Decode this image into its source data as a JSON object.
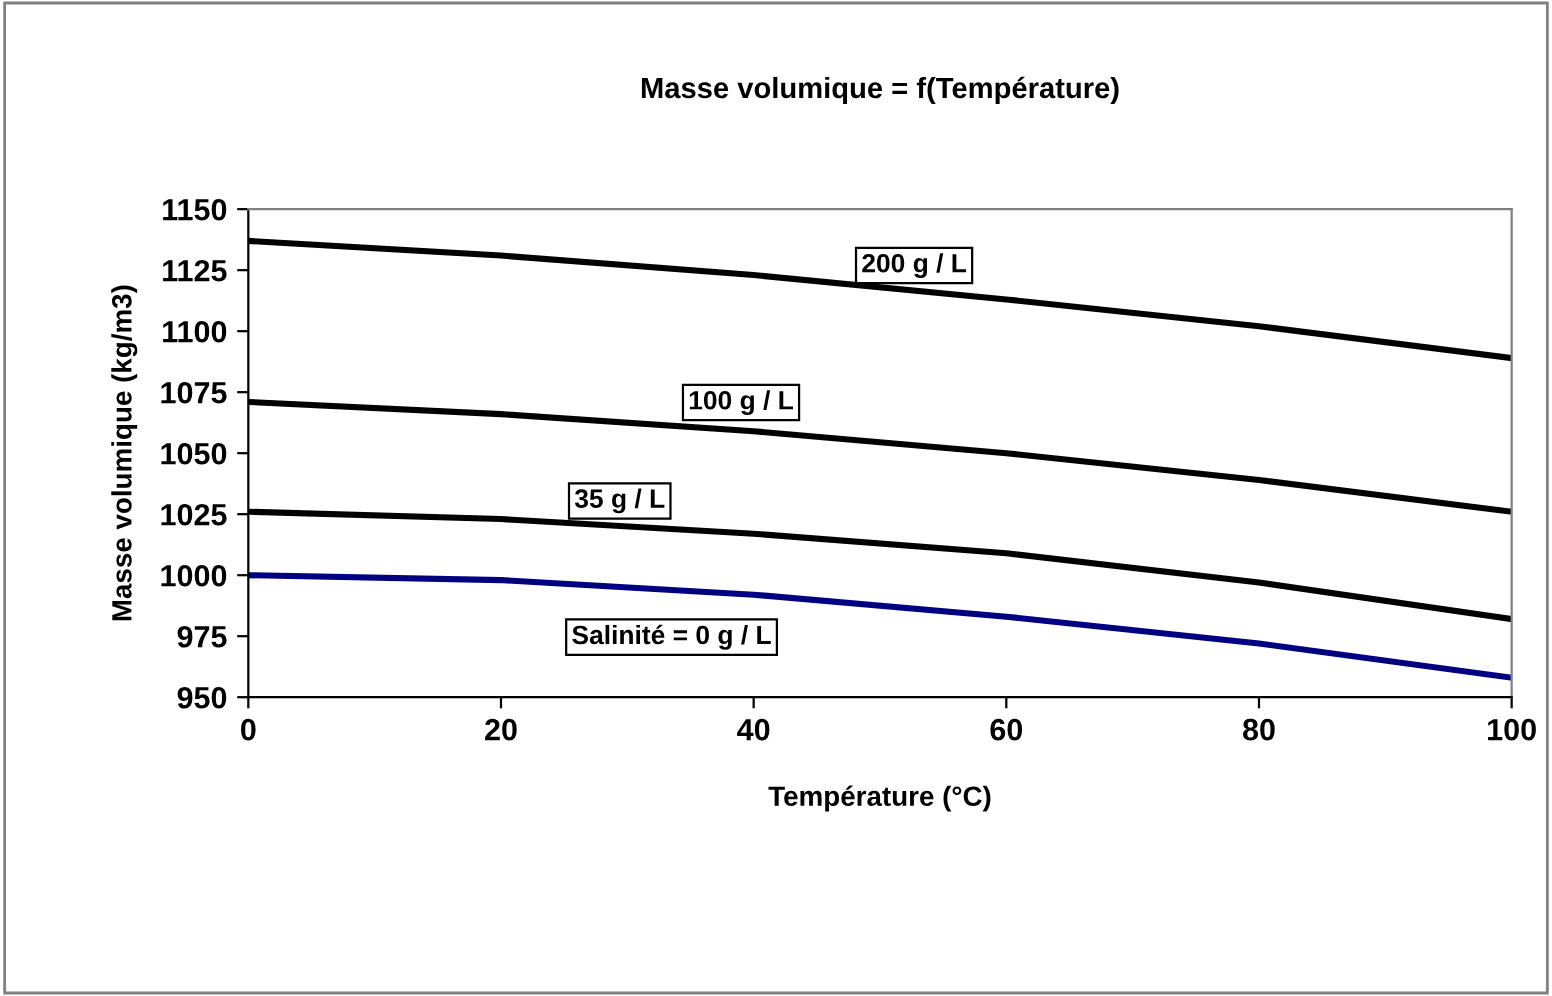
{
  "chart_data": {
    "type": "line",
    "title": "Masse volumique = f(Température)",
    "xlabel": "Température (°C)",
    "ylabel": "Masse volumique (kg/m3)",
    "x": [
      0,
      20,
      40,
      60,
      80,
      100
    ],
    "series": [
      {
        "name": "Salinité = 0 g / L",
        "color": "#000080",
        "values": [
          1000,
          998,
          992,
          983,
          972,
          958
        ]
      },
      {
        "name": "35 g / L",
        "color": "#000000",
        "values": [
          1026,
          1023,
          1017,
          1009,
          997,
          982
        ]
      },
      {
        "name": "100 g / L",
        "color": "#000000",
        "values": [
          1071,
          1066,
          1059,
          1050,
          1039,
          1026
        ]
      },
      {
        "name": "200 g / L",
        "color": "#000000",
        "values": [
          1137,
          1131,
          1123,
          1113,
          1102,
          1089
        ]
      }
    ],
    "xlim": [
      0,
      100
    ],
    "xticks": [
      0,
      20,
      40,
      60,
      80,
      100
    ],
    "ylim": [
      950,
      1150
    ],
    "yticks": [
      950,
      975,
      1000,
      1025,
      1050,
      1075,
      1100,
      1125,
      1150
    ],
    "grid": false,
    "legend": false,
    "marker": "none",
    "line_style": "solid"
  }
}
